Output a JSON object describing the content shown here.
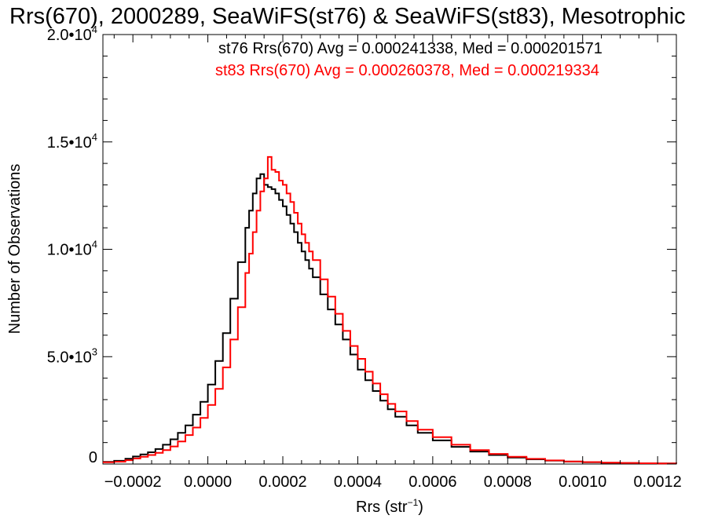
{
  "chart_data": {
    "type": "line",
    "step": true,
    "title": "Rrs(670), 2000289, SeaWiFS(st76) & SeaWiFS(st83), Mesotrophic",
    "xlabel": "Rrs (str",
    "xlabel_sup": "−1",
    "xlabel_close": ")",
    "ylabel": "Number of Observations",
    "xlim": [
      -0.00028,
      0.00125
    ],
    "ylim": [
      0,
      20000
    ],
    "grid": false,
    "xticks": [
      {
        "value": -0.0002,
        "label": "−0.0002"
      },
      {
        "value": 0.0,
        "label": "0.0000"
      },
      {
        "value": 0.0002,
        "label": "0.0002"
      },
      {
        "value": 0.0004,
        "label": "0.0004"
      },
      {
        "value": 0.0006,
        "label": "0.0006"
      },
      {
        "value": 0.0008,
        "label": "0.0008"
      },
      {
        "value": 0.001,
        "label": "0.0010"
      },
      {
        "value": 0.0012,
        "label": "0.0012"
      }
    ],
    "yticks": [
      {
        "value": 0,
        "label": "0",
        "exp": ""
      },
      {
        "value": 5000,
        "label": "5.0•10",
        "exp": "3"
      },
      {
        "value": 10000,
        "label": "1.0•10",
        "exp": "4"
      },
      {
        "value": 15000,
        "label": "1.5•10",
        "exp": "4"
      },
      {
        "value": 20000,
        "label": "2.0•10",
        "exp": "4"
      }
    ],
    "legend_position": "top-right",
    "series": [
      {
        "name": "st76",
        "color": "#000000",
        "annotation": "st76 Rrs(670) Avg = 0.000241338, Med = 0.000201571",
        "x": [
          -0.00028,
          -0.00025,
          -0.00022,
          -0.0002,
          -0.00018,
          -0.00016,
          -0.00014,
          -0.00012,
          -0.0001,
          -8e-05,
          -6e-05,
          -4e-05,
          -2e-05,
          0.0,
          2e-05,
          4e-05,
          6e-05,
          8e-05,
          0.0001,
          0.00011,
          0.00012,
          0.00013,
          0.00014,
          0.00015,
          0.00016,
          0.00017,
          0.00018,
          0.00019,
          0.0002,
          0.00021,
          0.00022,
          0.00023,
          0.00024,
          0.00025,
          0.00026,
          0.00027,
          0.00028,
          0.0003,
          0.00032,
          0.00034,
          0.00036,
          0.00038,
          0.0004,
          0.00042,
          0.00044,
          0.00046,
          0.00048,
          0.0005,
          0.00053,
          0.00056,
          0.0006,
          0.00065,
          0.0007,
          0.00075,
          0.0008,
          0.00085,
          0.0009,
          0.00095,
          0.001,
          0.00105,
          0.0011,
          0.00115,
          0.0012,
          0.00125
        ],
        "y": [
          100,
          150,
          250,
          350,
          450,
          550,
          700,
          900,
          1150,
          1450,
          1800,
          2300,
          2900,
          3700,
          4800,
          6100,
          7700,
          9400,
          11000,
          11800,
          12600,
          13300,
          13500,
          13000,
          12900,
          12800,
          12600,
          12300,
          12000,
          11600,
          11200,
          10800,
          10300,
          9900,
          9500,
          9100,
          8700,
          7900,
          7200,
          6500,
          5800,
          5100,
          4400,
          3900,
          3400,
          2950,
          2550,
          2200,
          1800,
          1450,
          1100,
          800,
          580,
          420,
          300,
          220,
          160,
          115,
          85,
          60,
          45,
          35,
          25,
          20
        ]
      },
      {
        "name": "st83",
        "color": "#ff0000",
        "annotation": "st83 Rrs(670) Avg = 0.000260378, Med = 0.000219334",
        "x": [
          -0.00028,
          -0.00025,
          -0.00022,
          -0.0002,
          -0.00018,
          -0.00016,
          -0.00014,
          -0.00012,
          -0.0001,
          -8e-05,
          -6e-05,
          -4e-05,
          -2e-05,
          0.0,
          2e-05,
          4e-05,
          6e-05,
          8e-05,
          0.0001,
          0.00011,
          0.00012,
          0.00013,
          0.00014,
          0.00015,
          0.00016,
          0.00017,
          0.00018,
          0.00019,
          0.0002,
          0.00021,
          0.00022,
          0.00023,
          0.00024,
          0.00025,
          0.00026,
          0.00027,
          0.00028,
          0.0003,
          0.00032,
          0.00034,
          0.00036,
          0.00038,
          0.0004,
          0.00042,
          0.00044,
          0.00046,
          0.00048,
          0.0005,
          0.00053,
          0.00056,
          0.0006,
          0.00065,
          0.0007,
          0.00075,
          0.0008,
          0.00085,
          0.0009,
          0.00095,
          0.001,
          0.00105,
          0.0011,
          0.00115,
          0.0012,
          0.00125
        ],
        "y": [
          80,
          110,
          180,
          260,
          340,
          420,
          520,
          650,
          820,
          1050,
          1350,
          1700,
          2150,
          2750,
          3500,
          4500,
          5800,
          7300,
          8900,
          9800,
          10800,
          11800,
          12700,
          13300,
          14300,
          13700,
          13600,
          13200,
          13000,
          12600,
          12200,
          11700,
          11200,
          10700,
          10300,
          9900,
          9500,
          8600,
          7800,
          7000,
          6200,
          5500,
          4900,
          4300,
          3750,
          3250,
          2800,
          2450,
          2000,
          1600,
          1250,
          900,
          650,
          470,
          340,
          240,
          170,
          120,
          90,
          65,
          50,
          38,
          28,
          22
        ]
      }
    ]
  }
}
